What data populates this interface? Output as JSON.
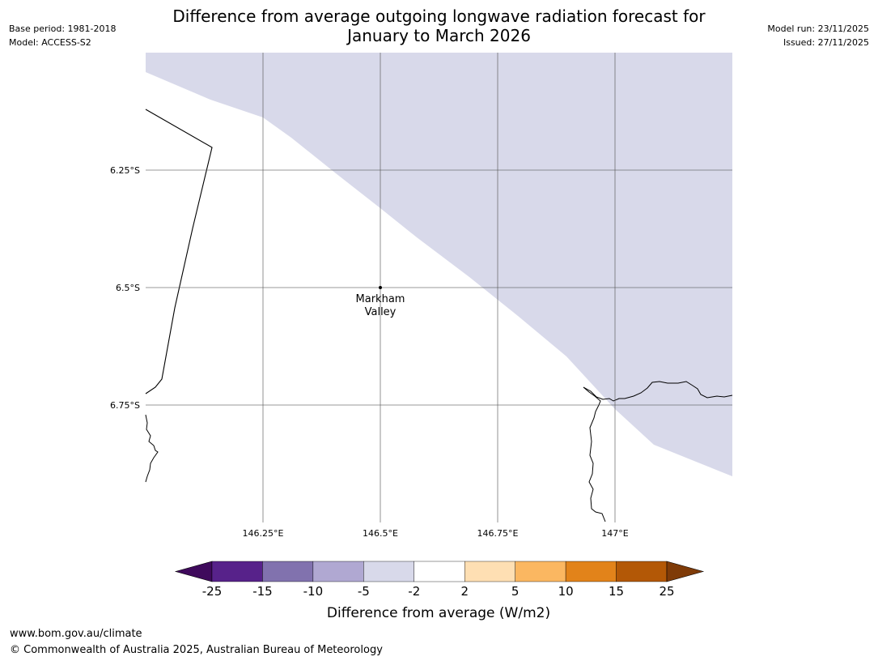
{
  "header": {
    "title_line1": "Difference from average outgoing longwave radiation forecast for",
    "title_line2": "January to March 2026",
    "base_period": "Base period: 1981-2018",
    "model": "Model: ACCESS-S2",
    "model_run": "Model run: 23/11/2025",
    "issued": "Issued: 27/11/2025"
  },
  "map": {
    "extent": {
      "lon_min": 146.0,
      "lon_max": 147.25,
      "lat_min": -7.0,
      "lat_max": -6.0
    },
    "gridlines": {
      "lons": [
        146.25,
        146.5,
        146.75,
        147.0
      ],
      "lats": [
        -6.25,
        -6.5,
        -6.75
      ],
      "lon_labels": [
        "146.25°E",
        "146.5°E",
        "146.75°E",
        "147°E"
      ],
      "lat_labels": [
        "6.25°S",
        "6.5°S",
        "6.75°S"
      ]
    },
    "shaded_category": "-5 to -2",
    "shaded_color": "#d8d9ea",
    "place": {
      "name_line1": "Markham",
      "name_line2": "Valley",
      "lon": 146.5,
      "lat": -6.5
    }
  },
  "legend": {
    "label": "Difference from average (W/m2)",
    "ticks": [
      "-25",
      "-15",
      "-10",
      "-5",
      "-2",
      "2",
      "5",
      "10",
      "15",
      "25"
    ],
    "colors": [
      "#3f0a5c",
      "#57228a",
      "#8172ae",
      "#b0a8d2",
      "#d8d9ea",
      "#ffffff",
      "#fedfb3",
      "#fbb761",
      "#e2831a",
      "#b35806",
      "#7f3b08"
    ]
  },
  "footer": {
    "url": "www.bom.gov.au/climate",
    "copyright": "© Commonwealth of Australia 2025, Australian Bureau of Meteorology"
  }
}
